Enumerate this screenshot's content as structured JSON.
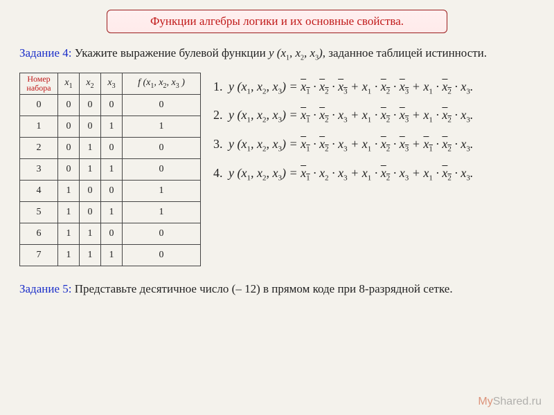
{
  "title": "Функции алгебры логики и их основные свойства.",
  "task4_label": "Задание 4:",
  "task4_a": " Укажите выражение булевой функции ",
  "task4_b": ", заданное таблицей истинности.",
  "task5_label": "Задание 5:",
  "task5_text": " Представьте десятичное число (– 12) в прямом коде при 8-разрядной сетке.",
  "table": {
    "header_set_l1": "Номер",
    "header_set_l2": "набора",
    "rows": [
      [
        "0",
        "0",
        "0",
        "0",
        "0"
      ],
      [
        "1",
        "0",
        "0",
        "1",
        "1"
      ],
      [
        "2",
        "0",
        "1",
        "0",
        "0"
      ],
      [
        "3",
        "0",
        "1",
        "1",
        "0"
      ],
      [
        "4",
        "1",
        "0",
        "0",
        "1"
      ],
      [
        "5",
        "1",
        "0",
        "1",
        "1"
      ],
      [
        "6",
        "1",
        "1",
        "0",
        "0"
      ],
      [
        "7",
        "1",
        "1",
        "1",
        "0"
      ]
    ]
  },
  "answers_bars": [
    [
      [
        1,
        1,
        1
      ],
      [
        0,
        1,
        1
      ],
      [
        0,
        1,
        0
      ]
    ],
    [
      [
        1,
        1,
        0
      ],
      [
        0,
        1,
        1
      ],
      [
        0,
        1,
        0
      ]
    ],
    [
      [
        1,
        1,
        0
      ],
      [
        0,
        1,
        1
      ],
      [
        1,
        1,
        0
      ]
    ],
    [
      [
        1,
        0,
        0
      ],
      [
        0,
        1,
        0
      ],
      [
        0,
        1,
        0
      ]
    ]
  ],
  "watermark_a": "My",
  "watermark_b": "Shared.ru",
  "colors": {
    "bg": "#f4f2ec",
    "title_border": "#9a1c1c",
    "title_text": "#c01818",
    "task_num": "#1a2ec9",
    "cell_border": "#444444"
  }
}
